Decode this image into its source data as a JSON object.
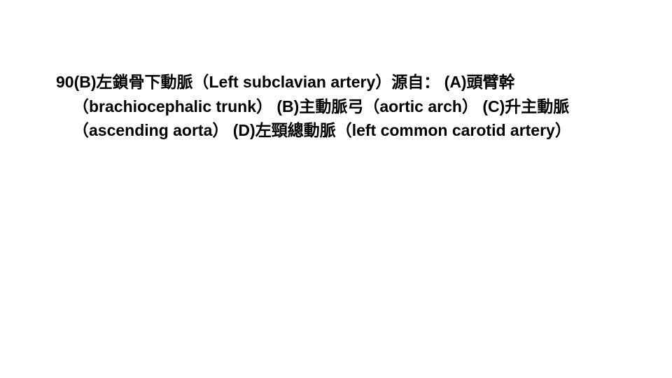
{
  "slide": {
    "question_number": "90(B)",
    "stem_part1": "左鎖骨下動脈（Left subclavian artery）源自：",
    "opt_a": "(A)頭臂幹（brachiocephalic trunk）",
    "opt_b": "(B)主動脈弓（aortic arch）",
    "opt_c": "(C)升主動脈（ascending aorta）",
    "opt_d": "(D)左頸總動脈（left common carotid artery）",
    "combined": "90(B)左鎖骨下動脈（Left subclavian artery）源自： (A)頭臂幹（brachiocephalic trunk） (B)主動脈弓（aortic arch） (C)升主動脈（ascending aorta） (D)左頸總動脈（left common carotid artery）",
    "text_color": "#000000",
    "background_color": "#ffffff",
    "font_size": 23,
    "font_weight": 700
  }
}
